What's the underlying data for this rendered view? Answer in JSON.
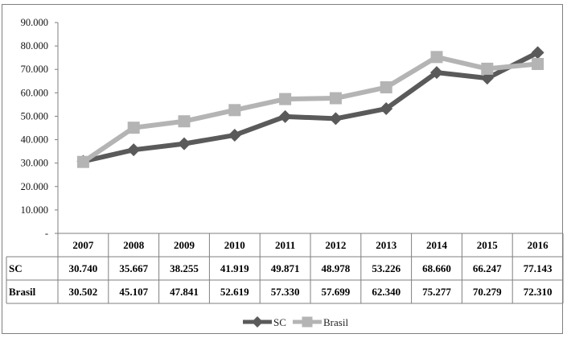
{
  "chart_data": {
    "type": "line",
    "title": "",
    "xlabel": "",
    "ylabel": "",
    "categories": [
      "2007",
      "2008",
      "2009",
      "2010",
      "2011",
      "2012",
      "2013",
      "2014",
      "2015",
      "2016"
    ],
    "ylim": [
      0,
      90000
    ],
    "yticks": [
      0,
      10000,
      20000,
      30000,
      40000,
      50000,
      60000,
      70000,
      80000,
      90000
    ],
    "ytick_labels": [
      "-",
      "10.000",
      "20.000",
      "30.000",
      "40.000",
      "50.000",
      "60.000",
      "70.000",
      "80.000",
      "90.000"
    ],
    "grid": false,
    "legend_position": "bottom",
    "data_table": true,
    "series": [
      {
        "name": "SC",
        "color": "#5a5a5a",
        "marker": "diamond",
        "values": [
          30740,
          35667,
          38255,
          41919,
          49871,
          48978,
          53226,
          68660,
          66247,
          77143
        ],
        "value_labels": [
          "30.740",
          "35.667",
          "38.255",
          "41.919",
          "49.871",
          "48.978",
          "53.226",
          "68.660",
          "66.247",
          "77.143"
        ]
      },
      {
        "name": "Brasil",
        "color": "#b4b4b4",
        "marker": "square",
        "values": [
          30502,
          45107,
          47841,
          52619,
          57330,
          57699,
          62340,
          75277,
          70279,
          72310
        ],
        "value_labels": [
          "30.502",
          "45.107",
          "47.841",
          "52.619",
          "57.330",
          "57.699",
          "62.340",
          "75.277",
          "70.279",
          "72.310"
        ]
      }
    ]
  }
}
